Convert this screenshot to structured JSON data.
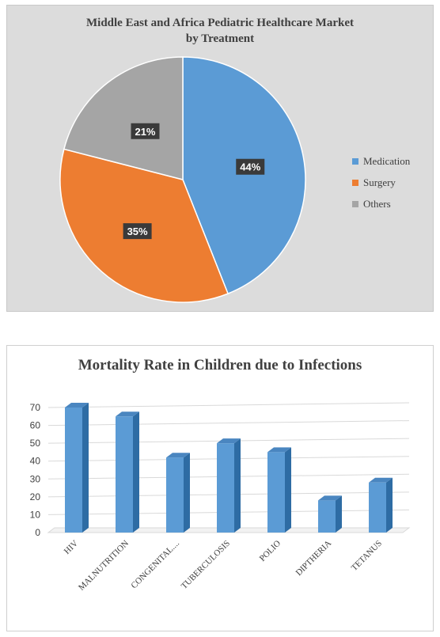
{
  "chart_data": [
    {
      "type": "pie",
      "title_lines": [
        "Middle East and Africa Pediatric Healthcare Market",
        "by Treatment"
      ],
      "categories": [
        "Medication",
        "Surgery",
        "Others"
      ],
      "values": [
        44,
        35,
        21
      ],
      "labels": [
        "44%",
        "35%",
        "21%"
      ],
      "colors": [
        "#5b9bd5",
        "#ed7d31",
        "#a5a5a5"
      ],
      "legend_position": "right"
    },
    {
      "type": "bar",
      "style": "3d-column",
      "title": "Mortality Rate in Children due to Infections",
      "categories": [
        "HIV",
        "MALNUTRITION",
        "CONGENITAL....",
        "TUBERCULOSIS",
        "POLIO",
        "DIPTHERIA",
        "TETANUS"
      ],
      "values": [
        70,
        65,
        42,
        50,
        45,
        18,
        28
      ],
      "yticks": [
        "0",
        "10",
        "20",
        "30",
        "40",
        "50",
        "60",
        "70"
      ],
      "ylim": [
        0,
        70
      ],
      "grid": true,
      "color": "#5b9bd5"
    }
  ]
}
